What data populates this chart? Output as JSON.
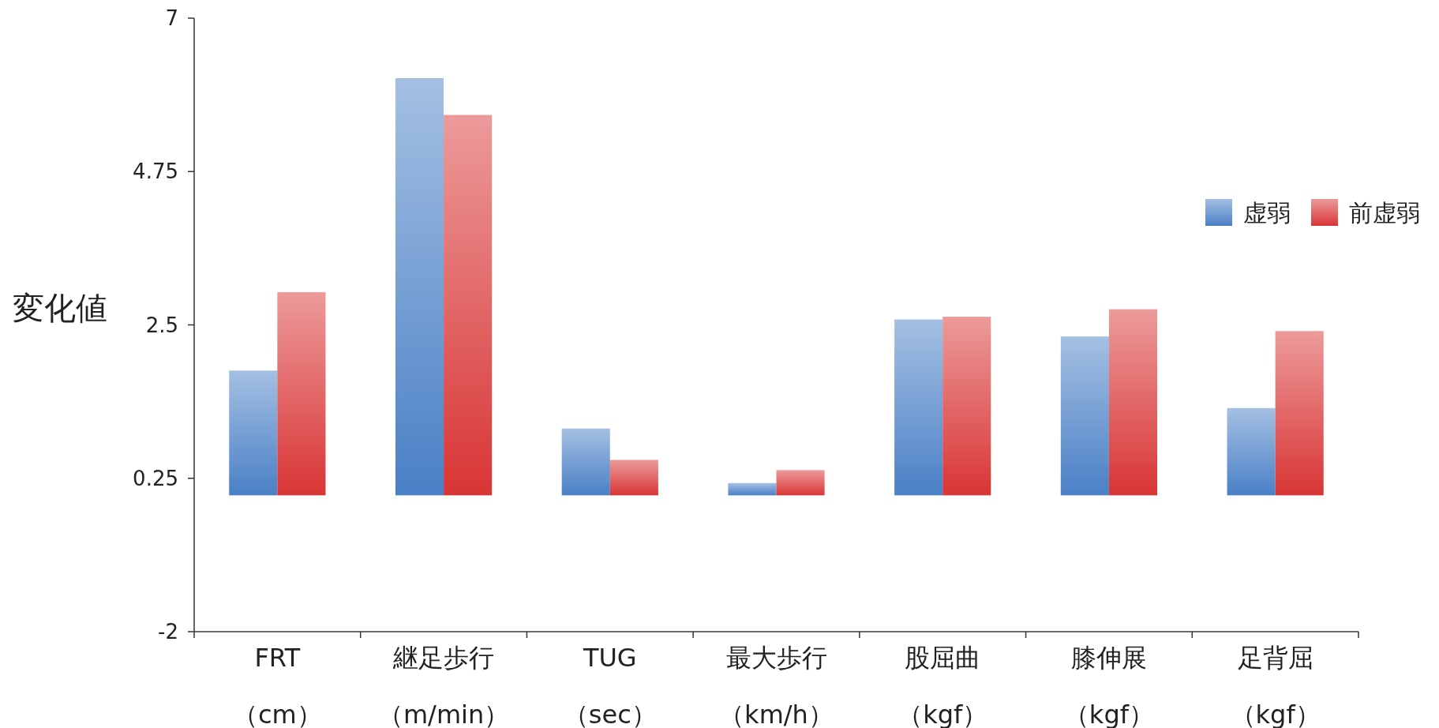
{
  "chart_data": {
    "type": "bar",
    "ylabel": "変化値",
    "categories": [
      "FRT\n（cm）",
      "継足歩行（m/min）",
      "TUG\n（sec）",
      "最大歩行（km/h）",
      "股屈曲（kgf）",
      "膝伸展（kgf）",
      "足背屈（kgf）"
    ],
    "series": [
      {
        "name": "虚弱",
        "color": "#4a80c6",
        "values": [
          1.83,
          6.12,
          0.98,
          0.18,
          2.58,
          2.33,
          1.28
        ]
      },
      {
        "name": "前虚弱",
        "color": "#d93535",
        "values": [
          2.98,
          5.58,
          0.52,
          0.37,
          2.62,
          2.73,
          2.41
        ]
      }
    ],
    "ylim": [
      -2,
      7
    ],
    "yticks": [
      -2,
      0.25,
      2.5,
      4.75,
      7
    ],
    "grid": false,
    "legend": "right"
  }
}
